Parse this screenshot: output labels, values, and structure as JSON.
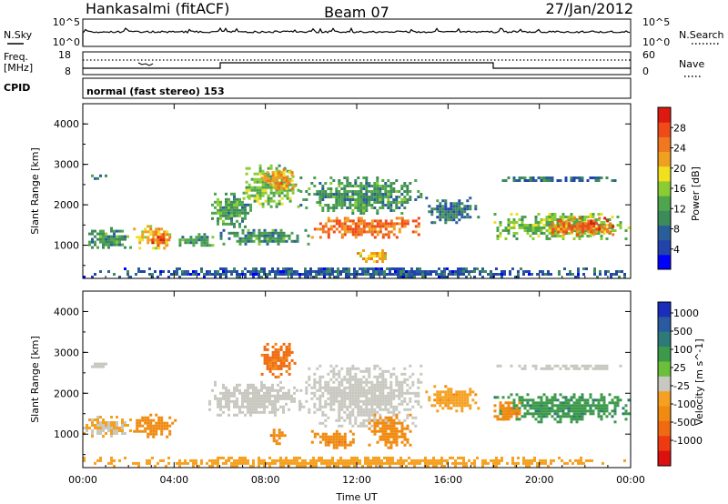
{
  "header": {
    "station": "Hankasalmi (fitACF)",
    "beam": "Beam 07",
    "date": "27/Jan/2012"
  },
  "top_strips": {
    "nsky_label": "N.Sky",
    "nsearch_label": "N.Search",
    "freq_label_line1": "Freq.",
    "freq_label_line2": "[MHz]",
    "nave_label": "Nave",
    "cpid_label": "CPID",
    "cpid_text": "normal (fast stereo) 153",
    "noise_ticks_left": [
      "10^5",
      "10^0"
    ],
    "noise_ticks_right": [
      "10^5",
      "10^0"
    ],
    "freq_ticks_left": [
      "18",
      "8"
    ],
    "freq_ticks_right": [
      "60",
      "0"
    ]
  },
  "colors": {
    "power": [
      "#0000ff",
      "#2244aa",
      "#2a5e9a",
      "#3d8a5a",
      "#4da64d",
      "#8ccc33",
      "#f0e020",
      "#f0a020",
      "#f07820",
      "#ef4a18",
      "#dd1a10"
    ],
    "velocity": [
      "#1a2dbb",
      "#2a5aa0",
      "#2e7a78",
      "#3d9a4a",
      "#6bbf3a",
      "#c8c8c0",
      "#f5a020",
      "#f08a10",
      "#ef6a10",
      "#ee3a10",
      "#dd1010"
    ],
    "ground_scatter": "#b4b4b4"
  },
  "chart_data": [
    {
      "type": "heatmap",
      "panel": "power",
      "xlabel": "",
      "ylabel": "Slant Range [km]",
      "colorbar_label": "Power [dB]",
      "colorbar_ticks": [
        "4",
        "8",
        "12",
        "16",
        "20",
        "24",
        "28"
      ],
      "x_ticks": [
        "00:00",
        "04:00",
        "08:00",
        "12:00",
        "16:00",
        "20:00",
        "00:00"
      ],
      "y_ticks": [
        "1000",
        "2000",
        "3000",
        "4000"
      ],
      "xlim": [
        0,
        24
      ],
      "ylim": [
        180,
        4500
      ],
      "blobs": [
        {
          "t0": 0.0,
          "t1": 1.3,
          "r0": 2550,
          "r1": 2750,
          "value": 8
        },
        {
          "t0": 0.0,
          "t1": 2.2,
          "r0": 900,
          "r1": 1450,
          "value": 10
        },
        {
          "t0": 2.2,
          "t1": 4.2,
          "r0": 850,
          "r1": 1500,
          "value": 20
        },
        {
          "t0": 3.0,
          "t1": 3.9,
          "r0": 900,
          "r1": 1300,
          "value": 26
        },
        {
          "t0": 4.2,
          "t1": 6.0,
          "r0": 900,
          "r1": 1300,
          "value": 10
        },
        {
          "t0": 5.5,
          "t1": 7.5,
          "r0": 1400,
          "r1": 2300,
          "value": 11
        },
        {
          "t0": 7.0,
          "t1": 9.6,
          "r0": 1900,
          "r1": 3000,
          "value": 14
        },
        {
          "t0": 7.8,
          "t1": 9.4,
          "r0": 2300,
          "r1": 2900,
          "value": 22
        },
        {
          "t0": 6.0,
          "t1": 10.0,
          "r0": 950,
          "r1": 1400,
          "value": 10
        },
        {
          "t0": 10.0,
          "t1": 15.0,
          "r0": 1100,
          "r1": 1700,
          "value": 24
        },
        {
          "t0": 9.5,
          "t1": 15.0,
          "r0": 1700,
          "r1": 2700,
          "value": 10
        },
        {
          "t0": 12.0,
          "t1": 13.5,
          "r0": 500,
          "r1": 900,
          "value": 20
        },
        {
          "t0": 15.0,
          "t1": 17.5,
          "r0": 1500,
          "r1": 2200,
          "value": 7
        },
        {
          "t0": 18.0,
          "t1": 24.0,
          "r0": 2500,
          "r1": 2700,
          "value": 7
        },
        {
          "t0": 18.0,
          "t1": 24.0,
          "r0": 1100,
          "r1": 1800,
          "value": 14
        },
        {
          "t0": 20.3,
          "t1": 23.3,
          "r0": 1200,
          "r1": 1700,
          "value": 25
        },
        {
          "t0": 0.0,
          "t1": 24.0,
          "r0": 180,
          "r1": 450,
          "value": 5
        }
      ]
    },
    {
      "type": "heatmap",
      "panel": "velocity",
      "xlabel": "Time UT",
      "ylabel": "Slant Range [km]",
      "colorbar_label": "Velocity [m s^-1]",
      "colorbar_ticks": [
        "1000",
        "500",
        "100",
        "25",
        "-25",
        "-100",
        "-500",
        "-1000"
      ],
      "x_ticks": [
        "00:00",
        "04:00",
        "08:00",
        "12:00",
        "16:00",
        "20:00",
        "00:00"
      ],
      "y_ticks": [
        "1000",
        "2000",
        "3000",
        "4000"
      ],
      "xlim": [
        0,
        24
      ],
      "ylim": [
        180,
        4500
      ],
      "blobs": [
        {
          "t0": 0.0,
          "t1": 1.3,
          "r0": 2550,
          "r1": 2750,
          "value": 0
        },
        {
          "t0": 0.0,
          "t1": 2.2,
          "r0": 900,
          "r1": 1450,
          "value": -30
        },
        {
          "t0": 2.2,
          "t1": 4.2,
          "r0": 850,
          "r1": 1500,
          "value": -150
        },
        {
          "t0": 5.5,
          "t1": 9.6,
          "r0": 1400,
          "r1": 2300,
          "value": 0
        },
        {
          "t0": 7.8,
          "t1": 9.4,
          "r0": 2300,
          "r1": 3300,
          "value": -300
        },
        {
          "t0": 8.2,
          "t1": 9.0,
          "r0": 700,
          "r1": 1200,
          "value": -200
        },
        {
          "t0": 9.5,
          "t1": 15.0,
          "r0": 1100,
          "r1": 2700,
          "value": 0
        },
        {
          "t0": 10.0,
          "t1": 12.0,
          "r0": 600,
          "r1": 1100,
          "value": -200
        },
        {
          "t0": 12.5,
          "t1": 14.5,
          "r0": 600,
          "r1": 1500,
          "value": -150
        },
        {
          "t0": 15.0,
          "t1": 17.5,
          "r0": 1500,
          "r1": 2200,
          "value": -80
        },
        {
          "t0": 18.0,
          "t1": 24.0,
          "r0": 2500,
          "r1": 2700,
          "value": 0
        },
        {
          "t0": 18.0,
          "t1": 24.0,
          "r0": 1200,
          "r1": 2000,
          "value": 200
        },
        {
          "t0": 18.0,
          "t1": 19.3,
          "r0": 1200,
          "r1": 1800,
          "value": -200
        },
        {
          "t0": 0.0,
          "t1": 24.0,
          "r0": 180,
          "r1": 450,
          "value": -60
        }
      ]
    }
  ]
}
